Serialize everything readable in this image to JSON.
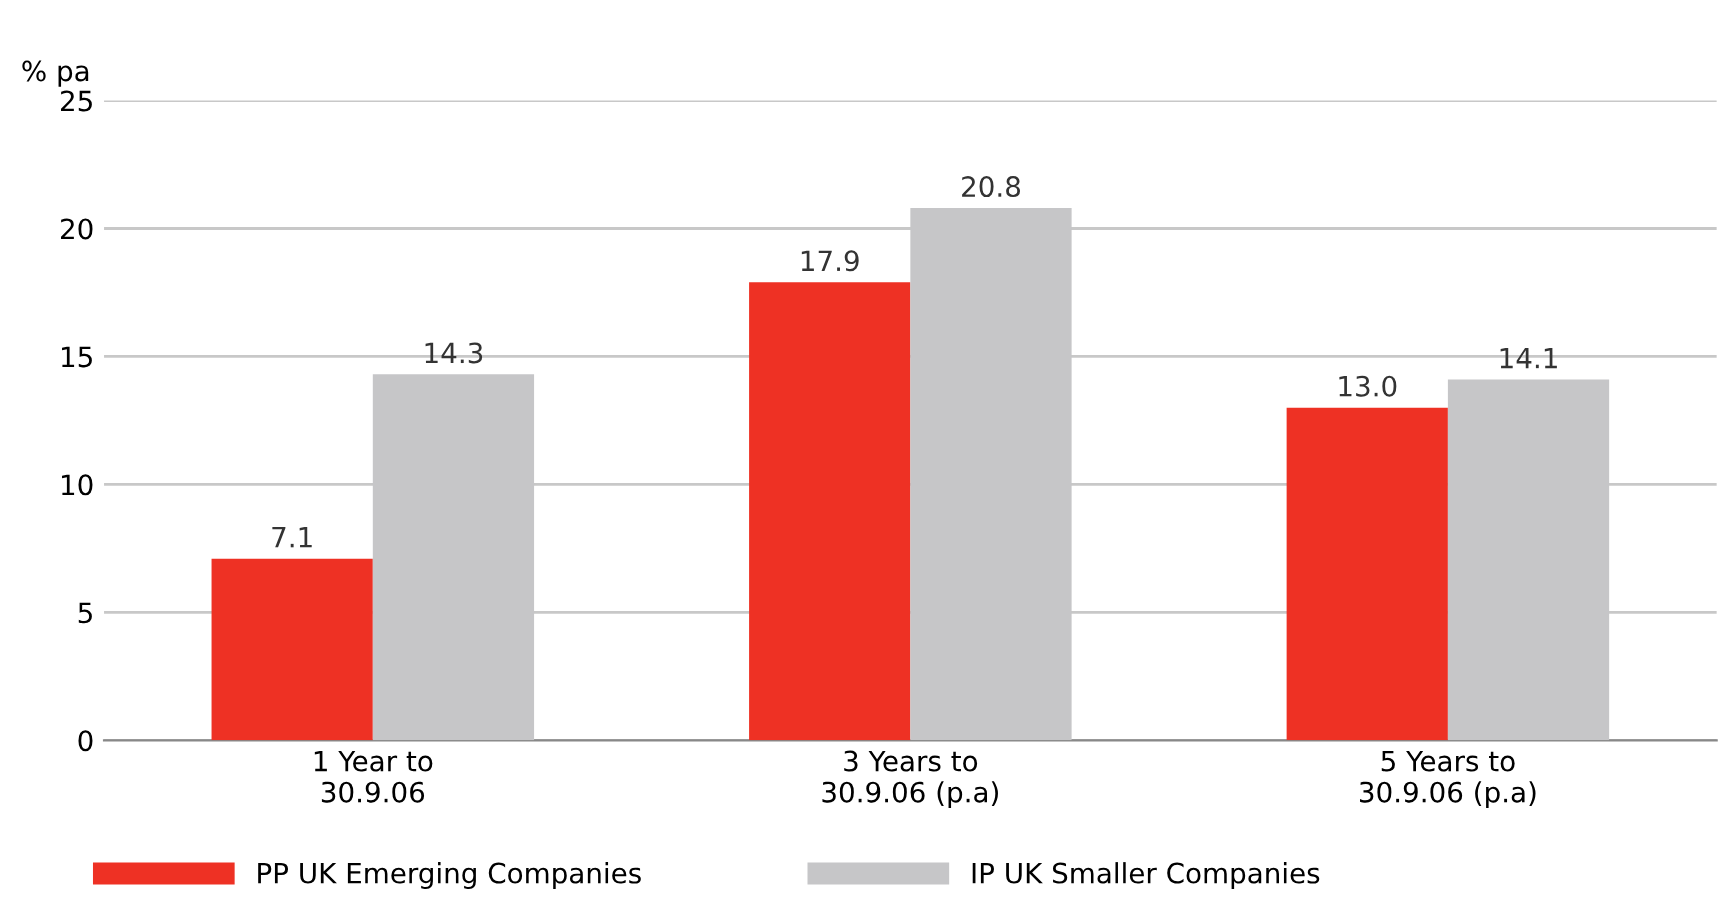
{
  "chart_data": {
    "type": "bar",
    "ylabel": "% pa",
    "categories": [
      "1 Year to\n30.9.06",
      "3 Years to\n30.9.06 (p.a)",
      "5 Years to\n30.9.06 (p.a)"
    ],
    "series": [
      {
        "name": "PP UK Emerging Companies",
        "color": "#ee3124",
        "values": [
          7.1,
          17.9,
          13.0
        ],
        "value_labels": [
          "7.1",
          "17.9",
          "13.0"
        ]
      },
      {
        "name": "IP UK Smaller Companies",
        "color": "#c6c6c8",
        "values": [
          14.3,
          20.8,
          14.1
        ],
        "value_labels": [
          "14.3",
          "20.8",
          "14.1"
        ]
      }
    ],
    "ylim": [
      0,
      25
    ],
    "yticks": [
      0,
      5,
      10,
      15,
      20,
      25
    ],
    "grid": "y",
    "legend": "bottom"
  }
}
